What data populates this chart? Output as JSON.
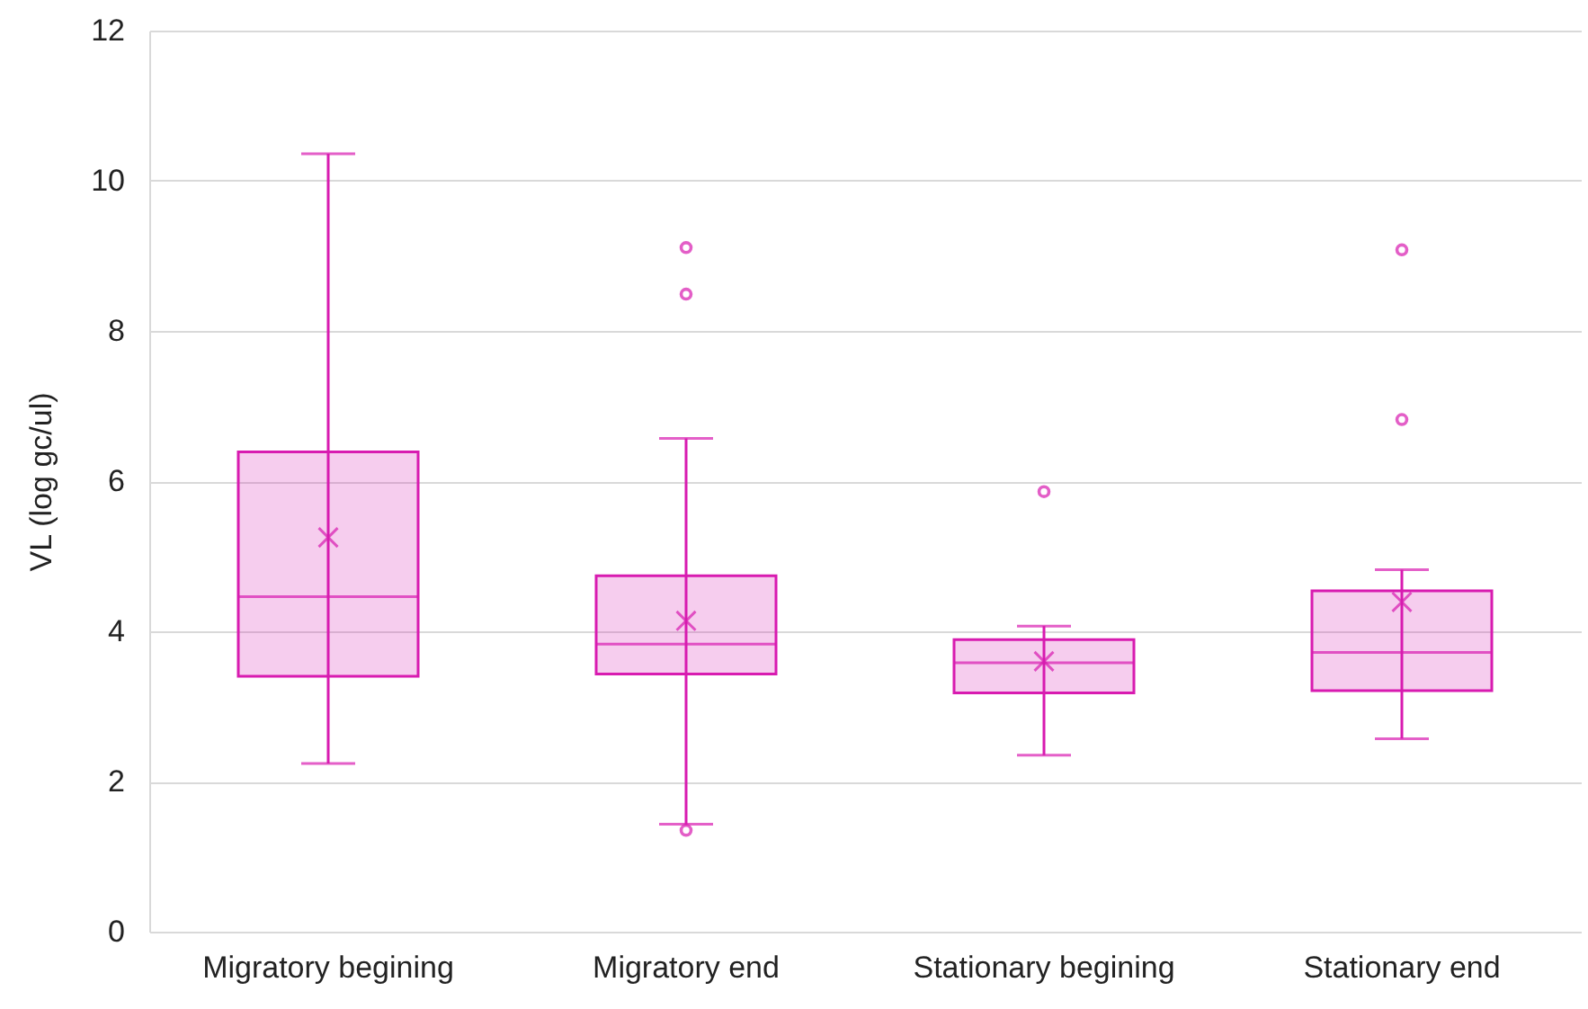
{
  "chart_data": {
    "type": "box",
    "ylabel": "VL (log gc/ul)",
    "categories": [
      "Migratory begining",
      "Migratory end",
      "Stationary begining",
      "Stationary end"
    ],
    "color": "#d81bb0",
    "ylim": [
      0,
      12
    ],
    "yticks": [
      0,
      2,
      4,
      6,
      8,
      10,
      12
    ],
    "grid": "y",
    "marker": "circle",
    "boxes": [
      {
        "low": 2.24,
        "q1": 3.4,
        "median": 4.46,
        "q3": 6.39,
        "high": 10.36,
        "mean": 5.25
      },
      {
        "low": 1.43,
        "q1": 3.43,
        "median": 3.83,
        "q3": 4.74,
        "high": 6.57,
        "mean": 4.14,
        "outliers": [
          9.11,
          8.49,
          1.35
        ]
      },
      {
        "low": 2.35,
        "q1": 3.18,
        "median": 3.58,
        "q3": 3.89,
        "high": 4.07,
        "mean": 3.6,
        "outliers": [
          5.86
        ]
      },
      {
        "low": 2.57,
        "q1": 3.21,
        "median": 3.72,
        "q3": 4.54,
        "high": 4.82,
        "mean": 4.39,
        "outliers": [
          9.08,
          6.82
        ]
      }
    ]
  }
}
